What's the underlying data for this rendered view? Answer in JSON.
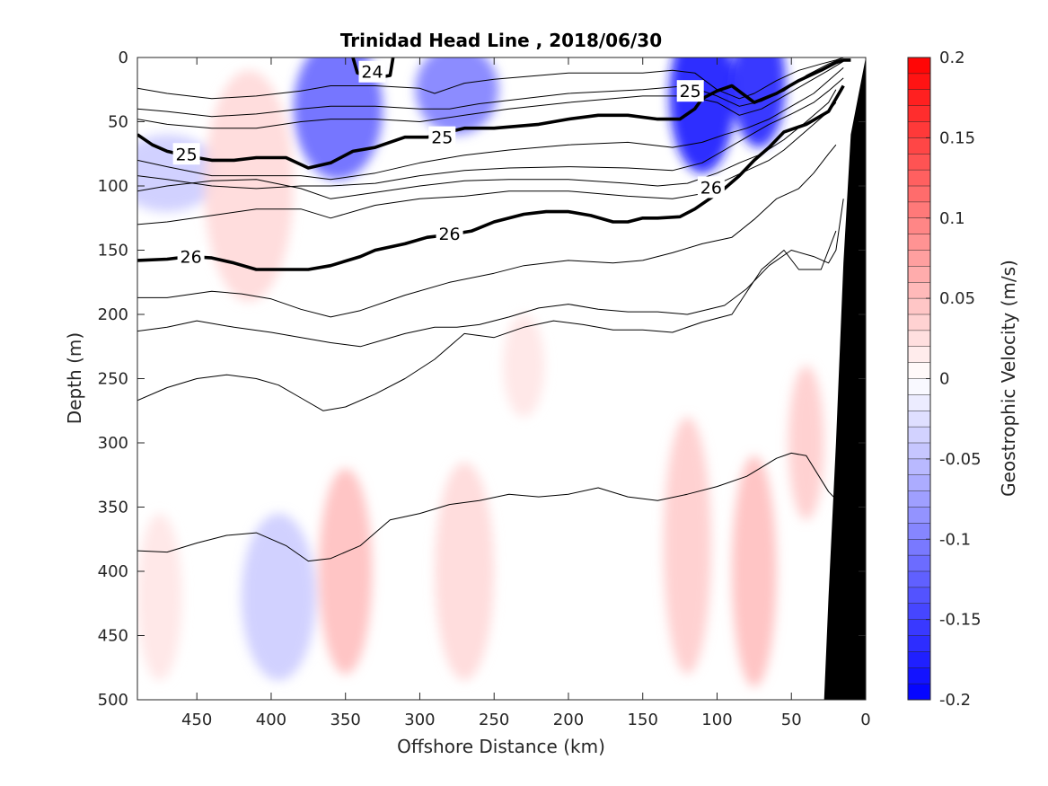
{
  "chart_data": {
    "type": "contour",
    "title": "Trinidad Head Line , 2018/06/30",
    "xlabel": "Offshore Distance (km)",
    "ylabel": "Depth (m)",
    "xlim": [
      490,
      0
    ],
    "ylim": [
      0,
      500
    ],
    "x_reversed": true,
    "y_reversed": true,
    "x_ticks": [
      "450",
      "400",
      "350",
      "300",
      "250",
      "200",
      "150",
      "100",
      "50",
      "0"
    ],
    "y_ticks": [
      "0",
      "50",
      "100",
      "150",
      "200",
      "250",
      "300",
      "350",
      "400",
      "450",
      "500"
    ],
    "colorbar": {
      "label": "Geostrophic Velocity (m/s)",
      "range": [
        -0.2,
        0.2
      ],
      "ticks": [
        "0.2",
        "0.15",
        "0.1",
        "0.05",
        "0",
        "-0.05",
        "-0.1",
        "-0.15",
        "-0.2"
      ],
      "colormap": "blue-white-red",
      "negative_color": "#0000ff",
      "positive_color": "#ff0000",
      "levels": 40
    },
    "velocity_features": [
      {
        "x_center": 355,
        "x_width": 30,
        "depth_center": 40,
        "depth_extent": 110,
        "value": -0.12
      },
      {
        "x_center": 275,
        "x_width": 28,
        "depth_center": 25,
        "depth_extent": 70,
        "value": -0.1
      },
      {
        "x_center": 110,
        "x_width": 22,
        "depth_center": 30,
        "depth_extent": 120,
        "value": -0.18
      },
      {
        "x_center": 72,
        "x_width": 18,
        "depth_center": 20,
        "depth_extent": 100,
        "value": -0.17
      },
      {
        "x_center": 470,
        "x_width": 35,
        "depth_center": 90,
        "depth_extent": 60,
        "value": -0.04
      },
      {
        "x_center": 395,
        "x_width": 25,
        "depth_center": 420,
        "depth_extent": 130,
        "value": -0.04
      },
      {
        "x_center": 415,
        "x_width": 30,
        "depth_center": 100,
        "depth_extent": 180,
        "value": 0.03
      },
      {
        "x_center": 350,
        "x_width": 18,
        "depth_center": 400,
        "depth_extent": 160,
        "value": 0.05
      },
      {
        "x_center": 270,
        "x_width": 20,
        "depth_center": 400,
        "depth_extent": 170,
        "value": 0.03
      },
      {
        "x_center": 230,
        "x_width": 14,
        "depth_center": 240,
        "depth_extent": 80,
        "value": 0.02
      },
      {
        "x_center": 120,
        "x_width": 16,
        "depth_center": 380,
        "depth_extent": 200,
        "value": 0.04
      },
      {
        "x_center": 75,
        "x_width": 15,
        "depth_center": 400,
        "depth_extent": 180,
        "value": 0.05
      },
      {
        "x_center": 40,
        "x_width": 12,
        "depth_center": 300,
        "depth_extent": 120,
        "value": 0.04
      },
      {
        "x_center": 475,
        "x_width": 15,
        "depth_center": 420,
        "depth_extent": 130,
        "value": 0.02
      }
    ],
    "isopycnals": [
      {
        "level": 24,
        "labeled": true,
        "bold": true,
        "x": [
          345,
          342,
          330,
          320,
          318
        ],
        "y": [
          0,
          12,
          16,
          14,
          0
        ]
      },
      {
        "level": null,
        "labeled": false,
        "bold": false,
        "x": [
          490,
          470,
          440,
          410,
          380,
          360,
          330,
          300,
          290,
          270,
          250,
          200,
          150,
          130,
          115,
          100,
          85,
          75,
          60,
          45,
          30,
          20,
          15
        ],
        "y": [
          24,
          28,
          32,
          30,
          26,
          22,
          22,
          24,
          28,
          20,
          17,
          12,
          12,
          10,
          12,
          25,
          32,
          28,
          18,
          10,
          5,
          2,
          0
        ]
      },
      {
        "level": null,
        "labeled": false,
        "bold": false,
        "x": [
          490,
          470,
          440,
          410,
          380,
          360,
          330,
          300,
          280,
          260,
          230,
          200,
          150,
          120,
          100,
          85,
          70,
          55,
          40,
          25,
          15
        ],
        "y": [
          40,
          42,
          46,
          44,
          40,
          38,
          38,
          40,
          40,
          36,
          32,
          28,
          25,
          22,
          30,
          38,
          34,
          26,
          14,
          5,
          0
        ]
      },
      {
        "level": null,
        "labeled": false,
        "bold": false,
        "x": [
          490,
          470,
          440,
          410,
          380,
          360,
          330,
          300,
          270,
          240,
          200,
          150,
          120,
          100,
          85,
          70,
          55,
          40,
          25,
          15
        ],
        "y": [
          48,
          52,
          55,
          55,
          50,
          48,
          48,
          50,
          45,
          40,
          35,
          30,
          30,
          35,
          45,
          40,
          30,
          20,
          10,
          3
        ]
      },
      {
        "level": 25,
        "labeled": true,
        "bold": true,
        "x": [
          490,
          480,
          470,
          455,
          440,
          425,
          410,
          390,
          375,
          360,
          345,
          330,
          310,
          295,
          270,
          250,
          220,
          200,
          180,
          160,
          140,
          125,
          115,
          110,
          100,
          90,
          75,
          60,
          45,
          30,
          20,
          15,
          10
        ],
        "y": [
          60,
          68,
          73,
          77,
          80,
          80,
          78,
          78,
          86,
          82,
          73,
          70,
          62,
          62,
          55,
          55,
          52,
          48,
          45,
          45,
          48,
          48,
          40,
          32,
          26,
          22,
          35,
          28,
          18,
          10,
          4,
          2,
          2
        ]
      },
      {
        "level": null,
        "labeled": false,
        "bold": false,
        "x": [
          490,
          470,
          440,
          410,
          380,
          360,
          330,
          300,
          270,
          240,
          200,
          160,
          130,
          110,
          95,
          80,
          65,
          50,
          35,
          25,
          15
        ],
        "y": [
          80,
          85,
          92,
          92,
          92,
          95,
          90,
          82,
          76,
          72,
          68,
          66,
          70,
          66,
          60,
          55,
          48,
          38,
          28,
          18,
          8
        ]
      },
      {
        "level": null,
        "labeled": false,
        "bold": false,
        "x": [
          490,
          470,
          440,
          410,
          380,
          360,
          330,
          300,
          270,
          240,
          200,
          160,
          130,
          110,
          95,
          80,
          65,
          50,
          35,
          25,
          15
        ],
        "y": [
          92,
          95,
          100,
          102,
          100,
          100,
          98,
          92,
          88,
          86,
          85,
          86,
          88,
          82,
          72,
          62,
          52,
          44,
          35,
          26,
          16
        ]
      },
      {
        "level": null,
        "labeled": false,
        "bold": false,
        "x": [
          490,
          470,
          440,
          410,
          380,
          360,
          330,
          300,
          270,
          240,
          200,
          160,
          140,
          120,
          100,
          85,
          70,
          55,
          40,
          25,
          20
        ],
        "y": [
          104,
          100,
          96,
          95,
          102,
          110,
          105,
          100,
          96,
          95,
          95,
          98,
          100,
          98,
          90,
          82,
          75,
          64,
          50,
          35,
          25
        ]
      },
      {
        "level": null,
        "labeled": false,
        "bold": false,
        "x": [
          490,
          470,
          440,
          410,
          380,
          360,
          330,
          300,
          270,
          240,
          200,
          160,
          130,
          110,
          95,
          80,
          65,
          55,
          45,
          35,
          25,
          20
        ],
        "y": [
          130,
          128,
          123,
          118,
          118,
          125,
          115,
          110,
          108,
          104,
          104,
          108,
          110,
          106,
          96,
          88,
          80,
          72,
          62,
          52,
          42,
          35
        ]
      },
      {
        "level": 26,
        "labeled": true,
        "bold": true,
        "x": [
          490,
          470,
          455,
          440,
          425,
          410,
          395,
          375,
          360,
          340,
          330,
          310,
          295,
          280,
          265,
          250,
          230,
          215,
          200,
          185,
          170,
          160,
          150,
          140,
          125,
          115,
          105,
          95,
          85,
          75,
          65,
          55,
          40,
          25,
          15
        ],
        "y": [
          158,
          157,
          155,
          156,
          160,
          165,
          165,
          165,
          162,
          155,
          150,
          145,
          140,
          138,
          135,
          128,
          122,
          120,
          120,
          123,
          128,
          128,
          125,
          125,
          124,
          118,
          110,
          102,
          92,
          80,
          70,
          58,
          52,
          42,
          22
        ]
      },
      {
        "level": null,
        "labeled": false,
        "bold": false,
        "x": [
          490,
          470,
          440,
          420,
          400,
          380,
          360,
          340,
          310,
          280,
          250,
          230,
          200,
          170,
          150,
          130,
          110,
          90,
          75,
          60,
          45,
          35,
          25,
          20
        ],
        "y": [
          187,
          187,
          182,
          184,
          188,
          196,
          202,
          197,
          185,
          175,
          168,
          162,
          158,
          160,
          158,
          152,
          145,
          140,
          126,
          110,
          102,
          90,
          75,
          68
        ]
      },
      {
        "level": null,
        "labeled": false,
        "bold": false,
        "x": [
          490,
          470,
          450,
          425,
          400,
          380,
          360,
          340,
          310,
          290,
          275,
          260,
          240,
          220,
          200,
          180,
          160,
          140,
          120,
          95,
          80,
          65,
          50,
          35,
          25,
          20,
          15
        ],
        "y": [
          213,
          210,
          205,
          210,
          214,
          218,
          222,
          225,
          215,
          210,
          210,
          208,
          202,
          195,
          192,
          196,
          198,
          198,
          200,
          193,
          180,
          162,
          150,
          155,
          160,
          150,
          110
        ]
      },
      {
        "level": null,
        "labeled": false,
        "bold": false,
        "x": [
          490,
          470,
          450,
          430,
          410,
          395,
          380,
          365,
          350,
          330,
          310,
          290,
          270,
          250,
          230,
          210,
          190,
          170,
          150,
          130,
          110,
          90,
          70,
          55,
          45,
          30,
          20
        ],
        "y": [
          267,
          257,
          250,
          247,
          250,
          255,
          265,
          275,
          272,
          262,
          250,
          235,
          215,
          218,
          210,
          205,
          208,
          212,
          212,
          214,
          206,
          200,
          165,
          150,
          165,
          165,
          135
        ]
      },
      {
        "level": null,
        "labeled": false,
        "bold": false,
        "x": [
          490,
          470,
          450,
          430,
          410,
          390,
          375,
          360,
          340,
          320,
          300,
          280,
          260,
          240,
          220,
          200,
          180,
          160,
          140,
          120,
          100,
          80,
          60,
          50,
          40,
          25,
          15
        ],
        "y": [
          384,
          385,
          378,
          372,
          370,
          380,
          392,
          390,
          380,
          360,
          355,
          348,
          345,
          340,
          342,
          340,
          335,
          342,
          345,
          340,
          334,
          326,
          312,
          308,
          310,
          338,
          350
        ]
      }
    ],
    "contour_labels": [
      {
        "text": "24",
        "x": 332,
        "y": 11
      },
      {
        "text": "25",
        "x": 457,
        "y": 75
      },
      {
        "text": "25",
        "x": 285,
        "y": 62
      },
      {
        "text": "25",
        "x": 118,
        "y": 26
      },
      {
        "text": "26",
        "x": 454,
        "y": 155
      },
      {
        "text": "26",
        "x": 280,
        "y": 137
      },
      {
        "text": "26",
        "x": 104,
        "y": 101
      }
    ],
    "bathymetry": {
      "color": "#000000",
      "x": [
        0,
        10,
        15,
        20,
        25,
        28,
        28
      ],
      "y": [
        0,
        60,
        160,
        300,
        420,
        500,
        500
      ]
    }
  }
}
